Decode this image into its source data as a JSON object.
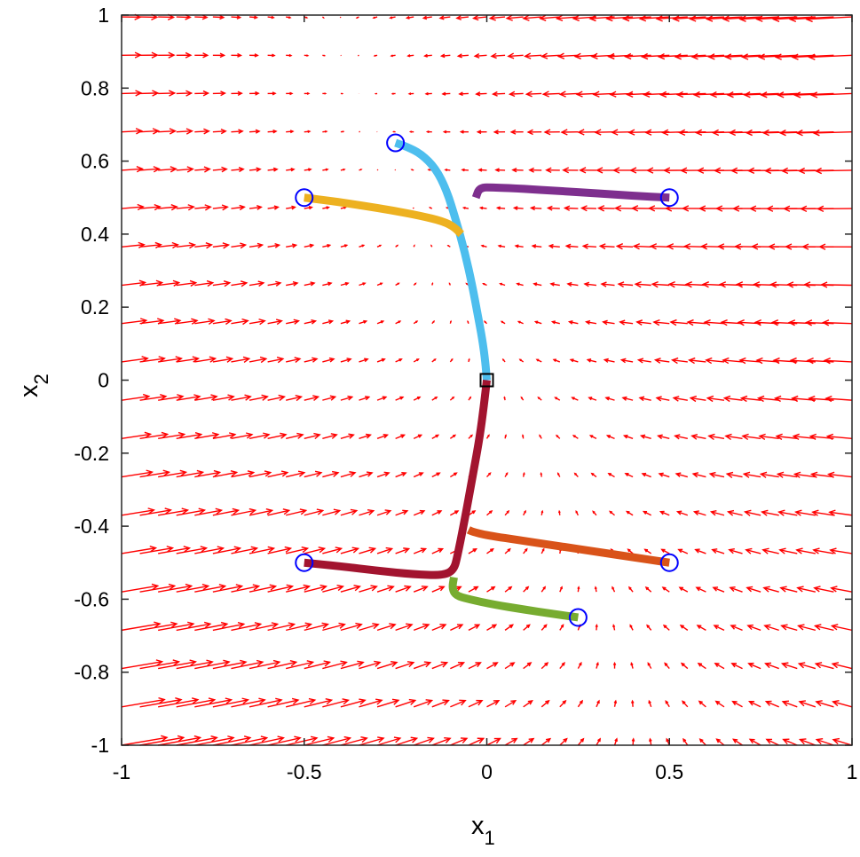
{
  "chart_data": {
    "type": "line",
    "title": "",
    "xlabel": "x",
    "xlabel_subscript": "1",
    "ylabel": "x",
    "ylabel_subscript": "2",
    "xlim": [
      -1,
      1
    ],
    "ylim": [
      -1,
      1
    ],
    "grid": false,
    "legend": "none",
    "xticks": [
      -1,
      -0.5,
      0,
      0.5,
      1
    ],
    "xtick_labels": [
      "-1",
      "-0.5",
      "0",
      "0.5",
      "1"
    ],
    "yticks": [
      1,
      0.8,
      0.6,
      0.4,
      0.2,
      0,
      -0.2,
      -0.4,
      -0.6,
      -0.8,
      -1
    ],
    "ytick_labels": [
      "1",
      "0.8",
      "0.6",
      "0.4",
      "0.2",
      "0",
      "-0.2",
      "-0.4",
      "-0.6",
      "-0.8",
      "-1"
    ],
    "vector_field": {
      "color": "#ff0000",
      "grid_x": [
        -1,
        -0.95,
        -0.9,
        -0.85,
        -0.8,
        -0.75,
        -0.7,
        -0.65,
        -0.6,
        -0.55,
        -0.5,
        -0.45,
        -0.4,
        -0.35,
        -0.3,
        -0.25,
        -0.2,
        -0.15,
        -0.1,
        -0.05,
        0,
        0.05,
        0.1,
        0.15,
        0.2,
        0.25,
        0.3,
        0.35,
        0.4,
        0.45,
        0.5,
        0.55,
        0.6,
        0.65,
        0.7,
        0.75,
        0.8,
        0.85,
        0.9,
        0.95,
        1
      ],
      "grid_y": [
        -1,
        -0.895,
        -0.79,
        -0.685,
        -0.58,
        -0.475,
        -0.37,
        -0.265,
        -0.16,
        -0.055,
        0.05,
        0.155,
        0.26,
        0.365,
        0.47,
        0.575,
        0.68,
        0.785,
        0.89,
        0.995
      ],
      "field": "u = -x1 - 0.5*x2 - 0.2*x1*x2^2, v = 0.1 - 0.15*x2 - 0.04*x1"
    },
    "series": [
      {
        "color": "#4dbeee",
        "x": [
          -0.25,
          -0.22,
          -0.18,
          -0.14,
          -0.11,
          -0.085,
          -0.06,
          -0.04,
          -0.025,
          -0.012,
          -0.004,
          0
        ],
        "y": [
          0.65,
          0.64,
          0.62,
          0.58,
          0.52,
          0.44,
          0.35,
          0.26,
          0.18,
          0.11,
          0.05,
          0
        ]
      },
      {
        "color": "#7e2f8e",
        "x": [
          0.5,
          0.4,
          0.3,
          0.2,
          0.1,
          0.02,
          -0.02,
          -0.03
        ],
        "y": [
          0.5,
          0.505,
          0.512,
          0.518,
          0.524,
          0.528,
          0.528,
          0.5
        ]
      },
      {
        "color": "#edb120",
        "x": [
          -0.5,
          -0.42,
          -0.34,
          -0.26,
          -0.18,
          -0.12,
          -0.09,
          -0.07
        ],
        "y": [
          0.5,
          0.49,
          0.478,
          0.465,
          0.45,
          0.435,
          0.42,
          0.4
        ]
      },
      {
        "color": "#a2142f",
        "x": [
          -0.5,
          -0.4,
          -0.3,
          -0.2,
          -0.12,
          -0.09,
          -0.08,
          -0.06,
          -0.04,
          -0.02,
          -0.008,
          0
        ],
        "y": [
          -0.5,
          -0.51,
          -0.522,
          -0.532,
          -0.535,
          -0.52,
          -0.48,
          -0.38,
          -0.27,
          -0.16,
          -0.07,
          0
        ]
      },
      {
        "color": "#d95319",
        "x": [
          0.5,
          0.4,
          0.3,
          0.2,
          0.1,
          0.0,
          -0.04,
          -0.05
        ],
        "y": [
          -0.5,
          -0.485,
          -0.47,
          -0.455,
          -0.44,
          -0.425,
          -0.415,
          -0.41
        ]
      },
      {
        "color": "#77ac30",
        "x": [
          0.25,
          0.18,
          0.1,
          0.02,
          -0.05,
          -0.085,
          -0.095,
          -0.09
        ],
        "y": [
          -0.65,
          -0.64,
          -0.628,
          -0.615,
          -0.6,
          -0.59,
          -0.57,
          -0.54
        ]
      }
    ],
    "start_points": [
      [
        -0.25,
        0.65
      ],
      [
        0.5,
        0.5
      ],
      [
        -0.5,
        0.5
      ],
      [
        -0.5,
        -0.5
      ],
      [
        0.5,
        -0.5
      ],
      [
        0.25,
        -0.65
      ]
    ],
    "start_marker": "blue-circle",
    "equilibrium_point": [
      0,
      0
    ],
    "equilibrium_marker": "black-square",
    "colors": {
      "field": "#ff0000",
      "start_marker": "#0000ff",
      "equilibrium_marker": "#000000"
    }
  }
}
